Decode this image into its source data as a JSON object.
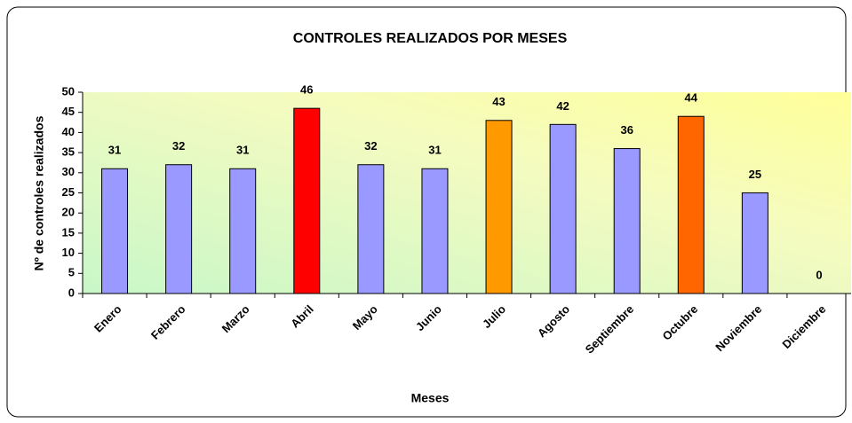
{
  "chart_data": {
    "type": "bar",
    "title": "CONTROLES REALIZADOS POR MESES",
    "x_label": "Meses",
    "y_label": "Nº de controles realizados",
    "categories": [
      "Enero",
      "Febrero",
      "Marzo",
      "Abril",
      "Mayo",
      "Junio",
      "Julio",
      "Agosto",
      "Septiembre",
      "Octubre",
      "Noviembre",
      "Diciembre"
    ],
    "values": [
      31,
      32,
      31,
      46,
      32,
      31,
      43,
      42,
      36,
      44,
      25,
      0
    ],
    "colors": [
      "#9999ff",
      "#9999ff",
      "#9999ff",
      "#ff0000",
      "#9999ff",
      "#9999ff",
      "#ff9900",
      "#9999ff",
      "#9999ff",
      "#ff6600",
      "#9999ff",
      "#9999ff"
    ],
    "ylim": [
      0,
      50
    ],
    "yticks": [
      0,
      5,
      10,
      15,
      20,
      25,
      30,
      35,
      40,
      45,
      50
    ],
    "grid": false
  }
}
